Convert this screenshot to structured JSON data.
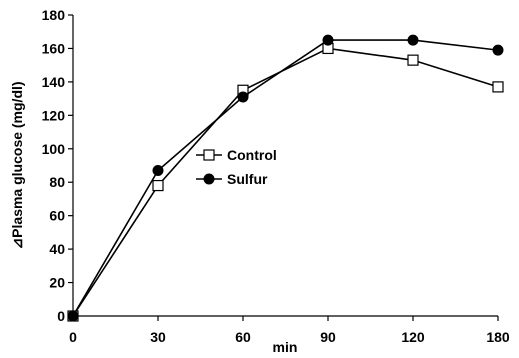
{
  "chart_data": {
    "type": "line",
    "title": "",
    "xlabel": "min",
    "ylabel": "⊿Plasma glucose (mg/dl)",
    "x": [
      0,
      30,
      60,
      90,
      120,
      180
    ],
    "x_tick_labels": [
      "0",
      "30",
      "60",
      "90",
      "120",
      "180"
    ],
    "ylim": [
      0,
      180
    ],
    "y_ticks": [
      0,
      20,
      40,
      60,
      80,
      100,
      120,
      140,
      160,
      180
    ],
    "grid": false,
    "legend_position": "center",
    "series": [
      {
        "name": "Control",
        "marker": "open-square",
        "color": "#000000",
        "values": [
          0,
          78,
          135,
          160,
          153,
          137
        ]
      },
      {
        "name": "Sulfur",
        "marker": "filled-circle",
        "color": "#000000",
        "values": [
          0,
          87,
          131,
          165,
          165,
          159
        ]
      }
    ]
  }
}
